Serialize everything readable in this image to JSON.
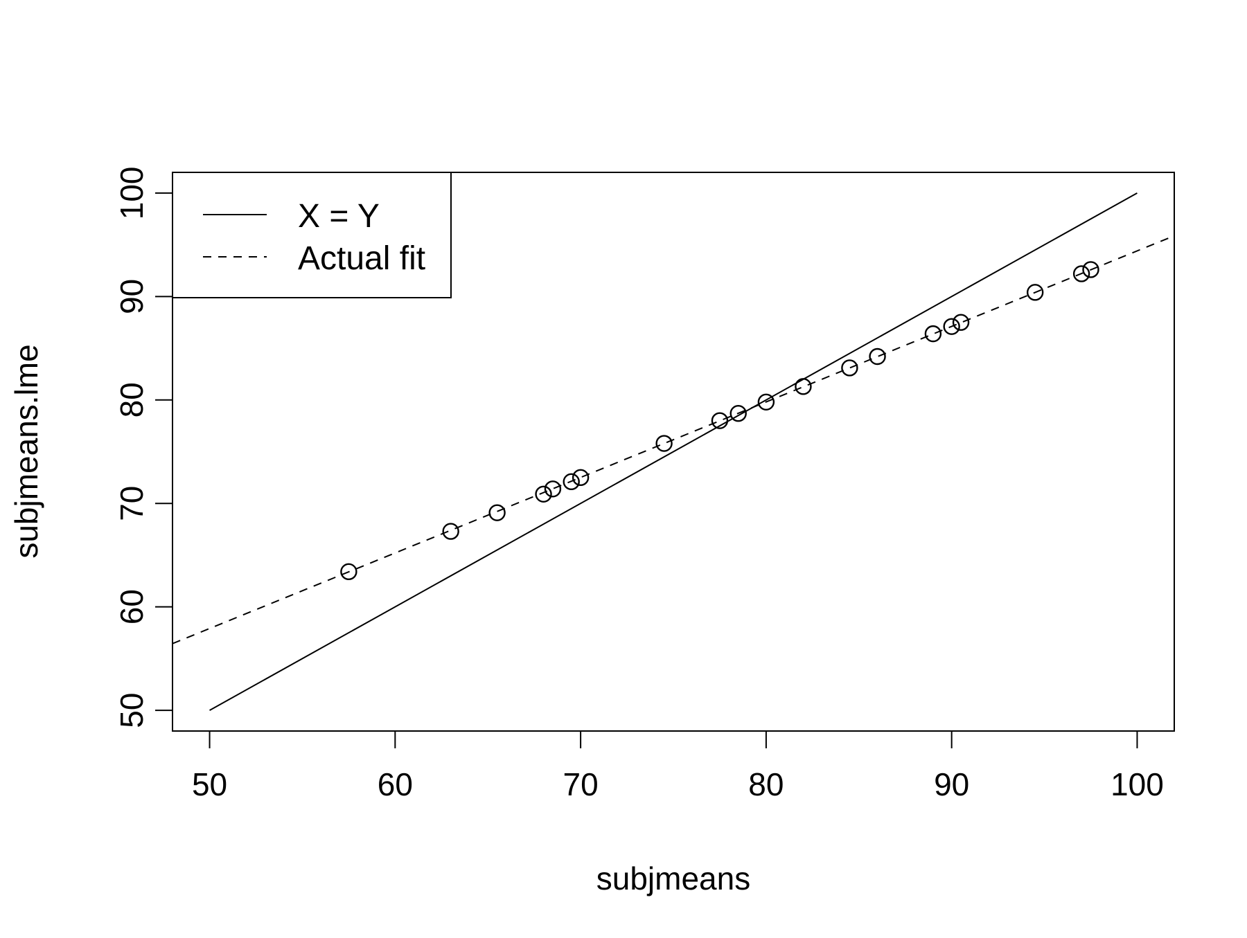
{
  "chart_data": {
    "type": "scatter",
    "title": "",
    "xlabel": "subjmeans",
    "ylabel": "subjmeans.lme",
    "xlim": [
      48,
      102
    ],
    "ylim": [
      48,
      102
    ],
    "x_ticks": [
      50,
      60,
      70,
      80,
      90,
      100
    ],
    "y_ticks": [
      50,
      60,
      70,
      80,
      90,
      100
    ],
    "grid": false,
    "legend_position": "top-left",
    "points": {
      "x": [
        57.5,
        63.0,
        65.5,
        68.0,
        68.5,
        69.5,
        70.0,
        74.5,
        77.5,
        78.5,
        80.0,
        82.0,
        84.5,
        86.0,
        89.0,
        90.0,
        90.5,
        94.5,
        97.0,
        97.5
      ],
      "y": [
        63.4,
        67.3,
        69.1,
        70.9,
        71.4,
        72.1,
        72.5,
        75.8,
        78.0,
        78.7,
        79.8,
        81.3,
        83.1,
        84.2,
        86.4,
        87.1,
        87.5,
        90.4,
        92.2,
        92.6
      ]
    },
    "lines": [
      {
        "label": "X = Y",
        "style": "solid",
        "x": [
          50,
          100
        ],
        "y": [
          50,
          100
        ]
      },
      {
        "label": "Actual fit",
        "style": "dashed",
        "x": [
          48,
          102
        ],
        "y": [
          56.45,
          95.87
        ]
      }
    ]
  }
}
